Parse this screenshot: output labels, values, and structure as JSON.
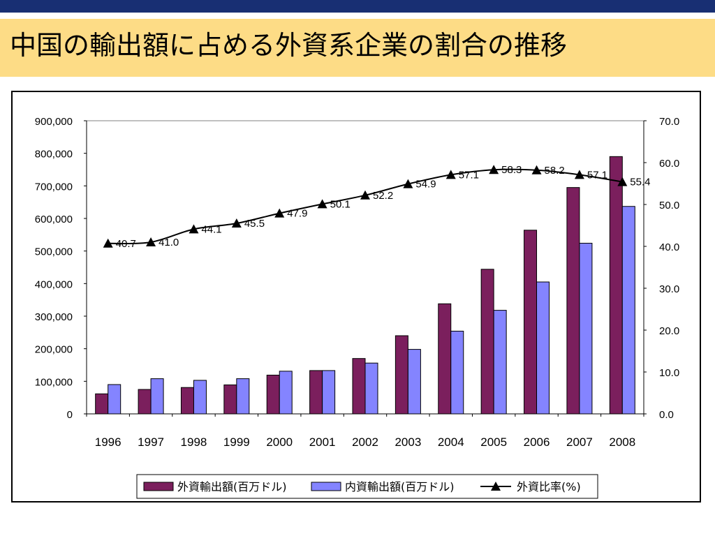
{
  "page": {
    "title": "中国の輸出額に占める外資系企業の割合の推移"
  },
  "colors": {
    "top_bar": "#182f73",
    "title_band": "#fddc86",
    "foreign_bar": "#7b1f5d",
    "domestic_bar": "#8484ff",
    "line": "#000000"
  },
  "chart_data": {
    "type": "bar",
    "categories": [
      "1996",
      "1997",
      "1998",
      "1999",
      "2000",
      "2001",
      "2002",
      "2003",
      "2004",
      "2005",
      "2006",
      "2007",
      "2008"
    ],
    "series": [
      {
        "name": "外資輸出額(百万ドル)",
        "kind": "bar",
        "axis": "left",
        "values": [
          61500,
          75000,
          81000,
          89000,
          119000,
          133000,
          170000,
          240000,
          338000,
          444000,
          564000,
          695000,
          790000
        ]
      },
      {
        "name": "内資輸出額(百万ドル)",
        "kind": "bar",
        "axis": "left",
        "values": [
          90000,
          108000,
          103000,
          108000,
          131000,
          133000,
          156000,
          198000,
          254000,
          318000,
          405000,
          524000,
          637000
        ]
      },
      {
        "name": "外資比率(%)",
        "kind": "line",
        "axis": "right",
        "values": [
          40.7,
          41.0,
          44.1,
          45.5,
          47.9,
          50.1,
          52.2,
          54.9,
          57.1,
          58.3,
          58.2,
          57.1,
          55.4
        ],
        "labels": [
          "40.7",
          "41.0",
          "44.1",
          "45.5",
          "47.9",
          "50.1",
          "52.2",
          "54.9",
          "57.1",
          "58.3",
          "58.2",
          "57.1",
          "55.4"
        ]
      }
    ],
    "y_left": {
      "ylim": [
        0,
        900000
      ],
      "ticks": [
        0,
        100000,
        200000,
        300000,
        400000,
        500000,
        600000,
        700000,
        800000,
        900000
      ],
      "tick_labels": [
        "0",
        "100,000",
        "200,000",
        "300,000",
        "400,000",
        "500,000",
        "600,000",
        "700,000",
        "800,000",
        "900,000"
      ]
    },
    "y_right": {
      "ylim": [
        0,
        70
      ],
      "ticks": [
        0,
        10,
        20,
        30,
        40,
        50,
        60,
        70
      ],
      "tick_labels": [
        "0.0",
        "10.0",
        "20.0",
        "30.0",
        "40.0",
        "50.0",
        "60.0",
        "70.0"
      ]
    },
    "legend": {
      "position": "bottom",
      "entries": [
        "外資輸出額(百万ドル)",
        "内資輸出額(百万ドル)",
        "外資比率(%)"
      ]
    },
    "grid": false
  }
}
